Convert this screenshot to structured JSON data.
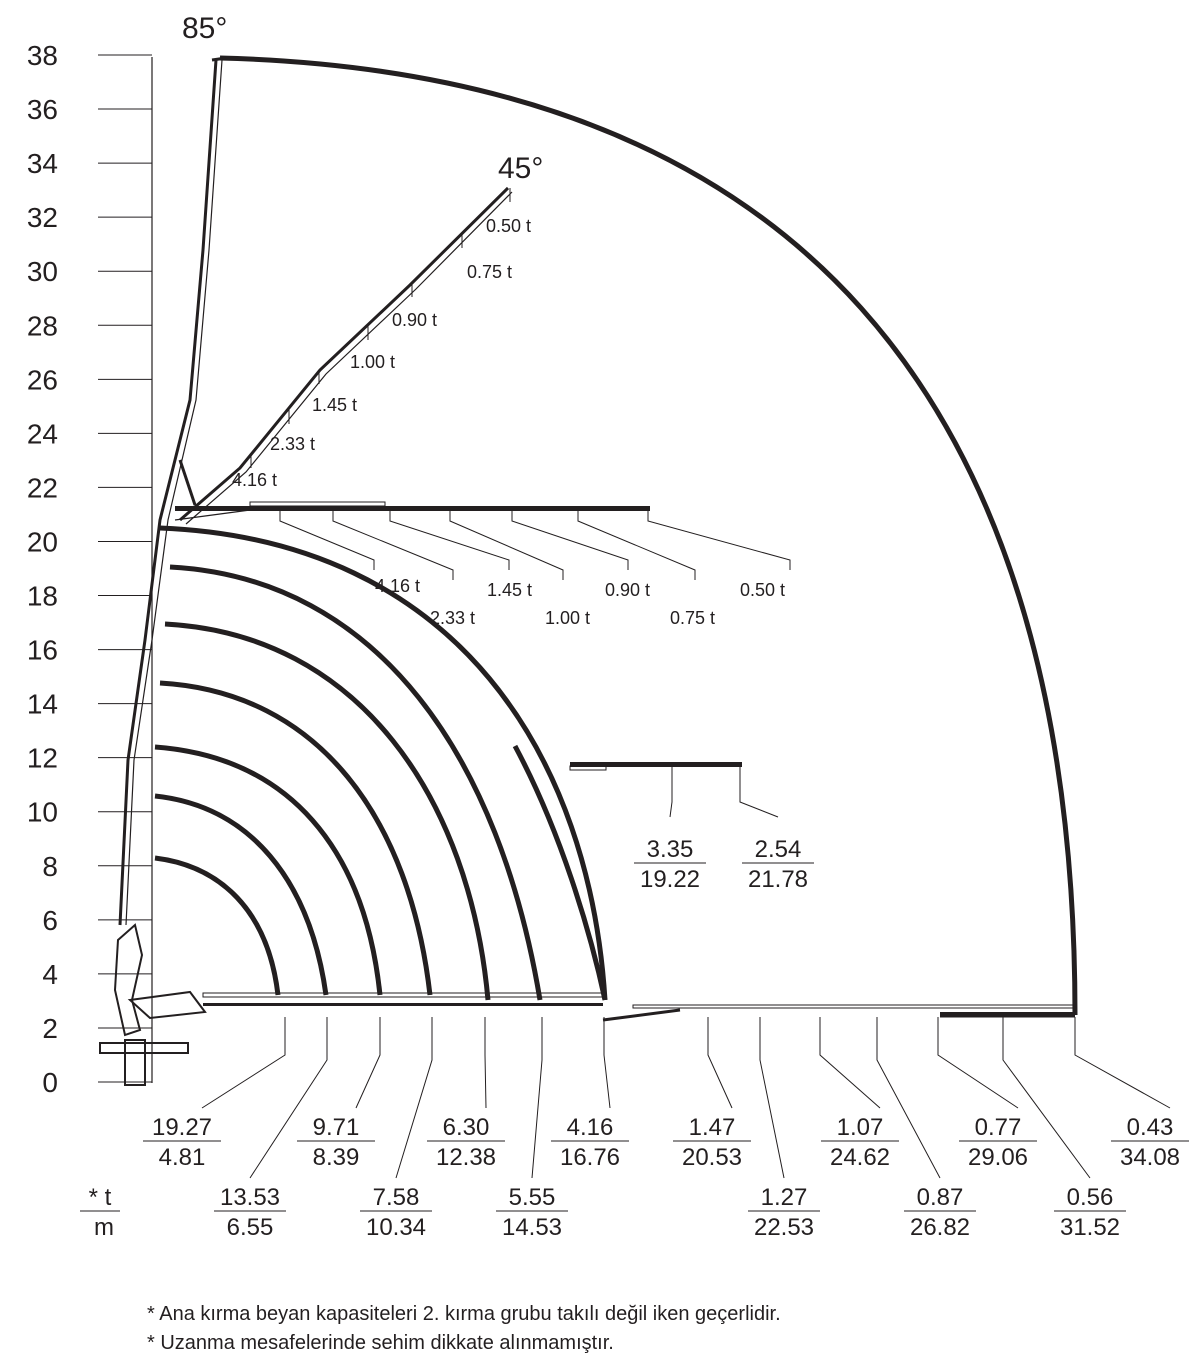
{
  "chart_data": {
    "type": "load_chart",
    "y_axis": {
      "ticks": [
        "0",
        "2",
        "4",
        "6",
        "8",
        "10",
        "12",
        "14",
        "16",
        "18",
        "20",
        "22",
        "24",
        "26",
        "28",
        "30",
        "32",
        "34",
        "36",
        "38"
      ],
      "range": [
        0,
        38
      ]
    },
    "angles": {
      "top": "85°",
      "mid": "45°"
    },
    "boom_45_loads": [
      "0.50 t",
      "0.75 t",
      "0.90 t",
      "1.00 t",
      "1.45 t",
      "2.33 t",
      "4.16 t"
    ],
    "horizontal_loads": [
      "4.16 t",
      "2.33 t",
      "1.45 t",
      "1.00 t",
      "0.90 t",
      "0.75 t",
      "0.50 t"
    ],
    "jib_inset": [
      {
        "t": "3.35",
        "m": "19.22"
      },
      {
        "t": "2.54",
        "m": "21.78"
      }
    ],
    "bottom_upper": [
      {
        "t": "19.27",
        "m": "4.81"
      },
      {
        "t": "9.71",
        "m": "8.39"
      },
      {
        "t": "6.30",
        "m": "12.38"
      },
      {
        "t": "4.16",
        "m": "16.76"
      },
      {
        "t": "1.47",
        "m": "20.53"
      },
      {
        "t": "1.07",
        "m": "24.62"
      },
      {
        "t": "0.77",
        "m": "29.06"
      },
      {
        "t": "0.43",
        "m": "34.08"
      }
    ],
    "bottom_lower": [
      {
        "t": "13.53",
        "m": "6.55"
      },
      {
        "t": "7.58",
        "m": "10.34"
      },
      {
        "t": "5.55",
        "m": "14.53"
      },
      {
        "t": "1.27",
        "m": "22.53"
      },
      {
        "t": "0.87",
        "m": "26.82"
      },
      {
        "t": "0.56",
        "m": "31.52"
      }
    ],
    "legend": {
      "t": "* t",
      "m": "m"
    }
  },
  "notes": [
    "* Ana kırma beyan kapasiteleri 2. kırma grubu takılı değil iken geçerlidir.",
    "* Uzanma mesafelerinde sehim dikkate alınmamıştır."
  ]
}
